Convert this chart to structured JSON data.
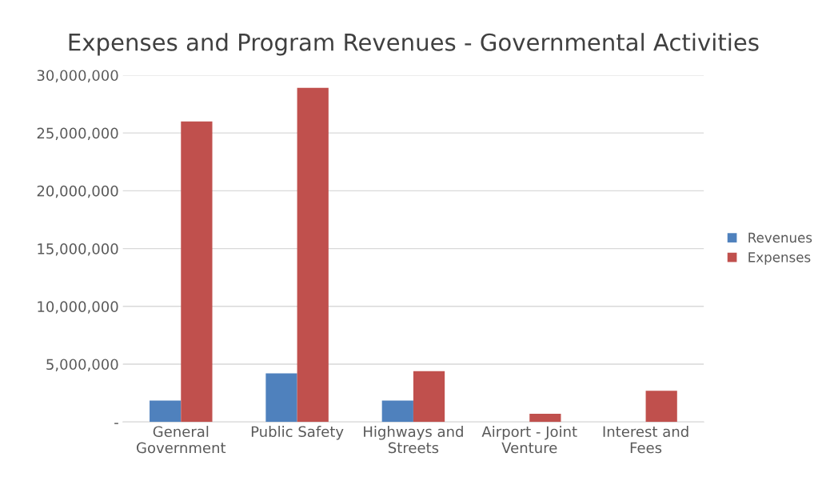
{
  "chart_data": {
    "type": "bar",
    "title": "Expenses and Program Revenues - Governmental Activities",
    "categories": [
      "General\nGovernment",
      "Public Safety",
      "Highways and\nStreets",
      "Airport - Joint\nVenture",
      "Interest and\nFees"
    ],
    "series": [
      {
        "name": "Revenues",
        "color": "#4f81bd",
        "values": [
          1850000,
          4200000,
          1850000,
          null,
          null
        ]
      },
      {
        "name": "Expenses",
        "color": "#c0504d",
        "values": [
          26000000,
          28900000,
          4400000,
          700000,
          2700000
        ]
      }
    ],
    "ylim": [
      0,
      30000000
    ],
    "yticks": [
      {
        "value": 0,
        "label": "-"
      },
      {
        "value": 5000000,
        "label": "5,000,000"
      },
      {
        "value": 10000000,
        "label": "10,000,000"
      },
      {
        "value": 15000000,
        "label": "15,000,000"
      },
      {
        "value": 20000000,
        "label": "20,000,000"
      },
      {
        "value": 25000000,
        "label": "25,000,000"
      },
      {
        "value": 30000000,
        "label": "30,000,000"
      }
    ],
    "grid": "y",
    "legend": "right"
  }
}
